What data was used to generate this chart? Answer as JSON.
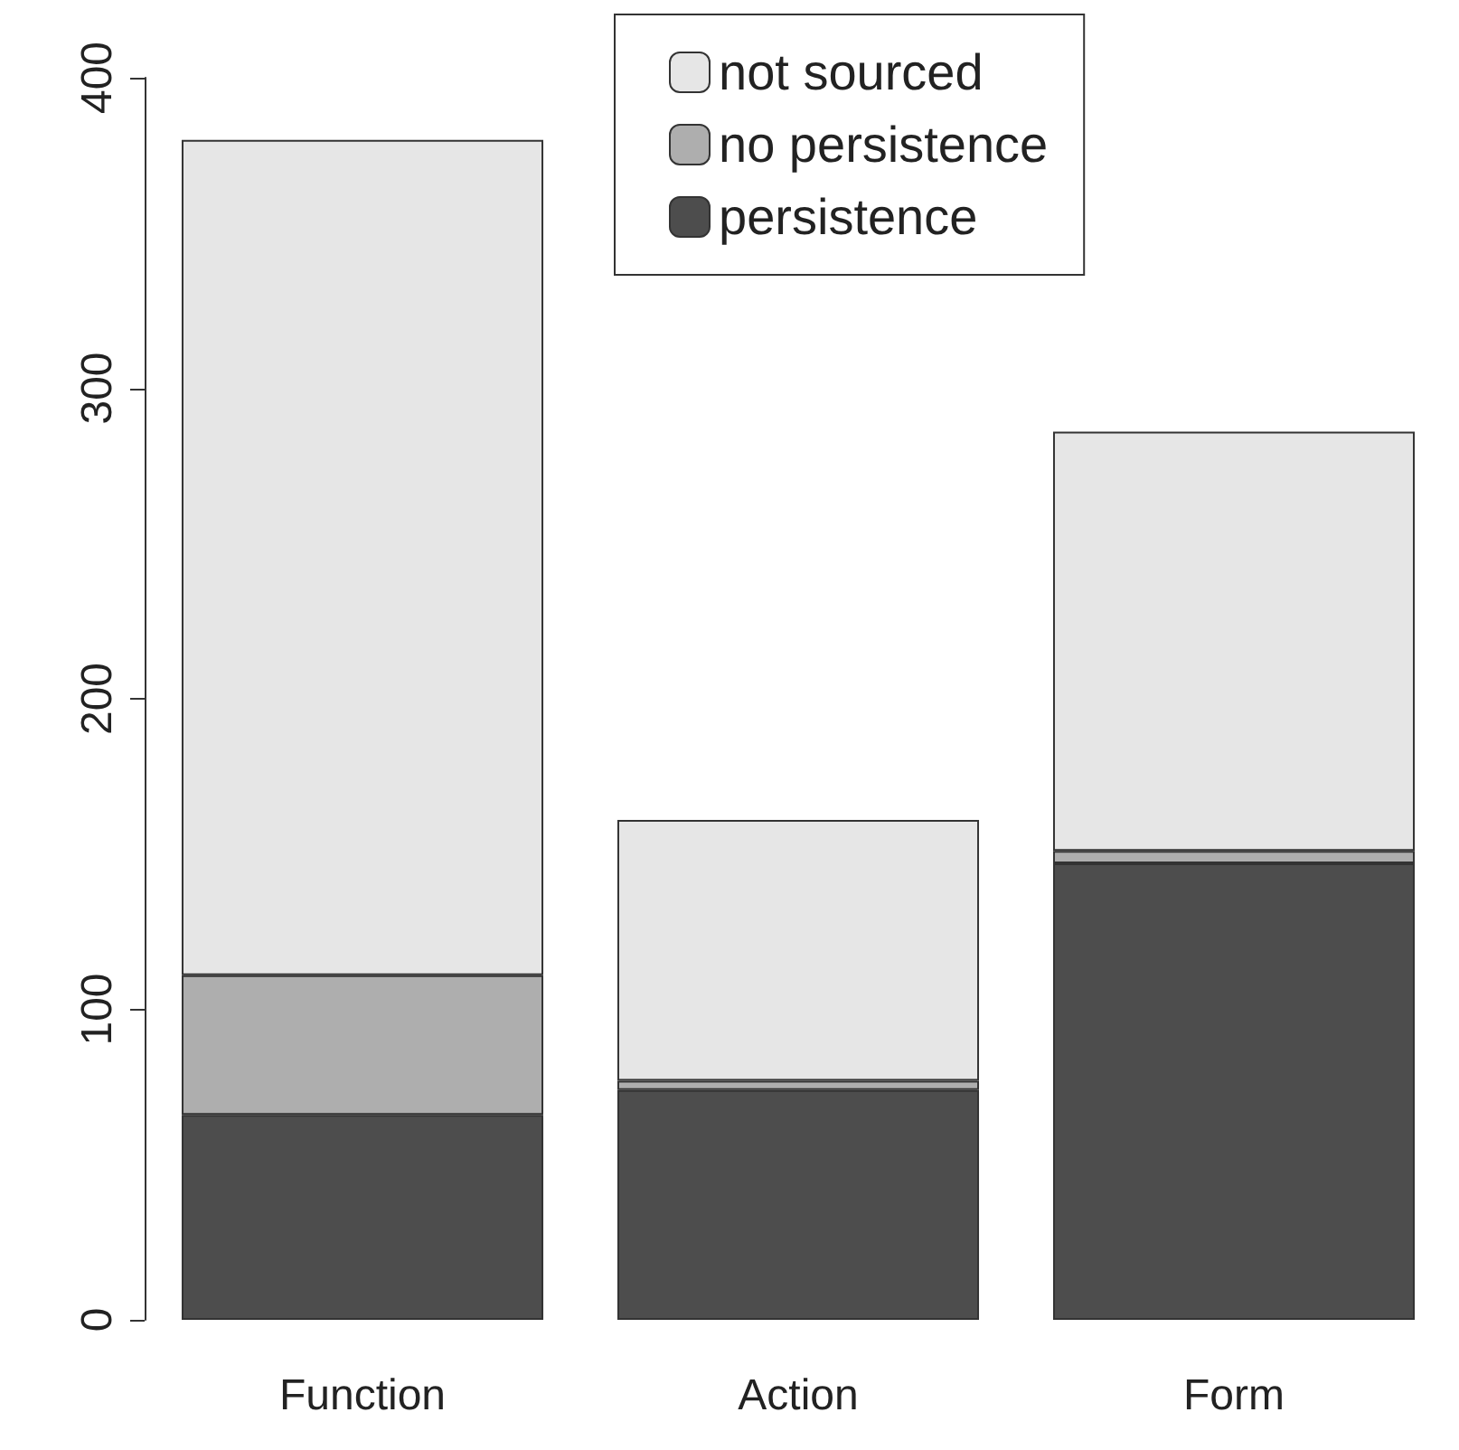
{
  "chart_data": {
    "type": "bar",
    "stacked": true,
    "categories": [
      "Function",
      "Action",
      "Form"
    ],
    "series": [
      {
        "name": "persistence",
        "color": "#4d4d4d",
        "values": [
          66,
          74,
          147
        ]
      },
      {
        "name": "no persistence",
        "color": "#aeaeae",
        "values": [
          45,
          3,
          4
        ]
      },
      {
        "name": "not sourced",
        "color": "#e6e6e6",
        "values": [
          269,
          84,
          135
        ]
      }
    ],
    "ylim": [
      0,
      400
    ],
    "yticks": [
      0,
      100,
      200,
      300,
      400
    ],
    "grid": false,
    "legend": "top"
  }
}
